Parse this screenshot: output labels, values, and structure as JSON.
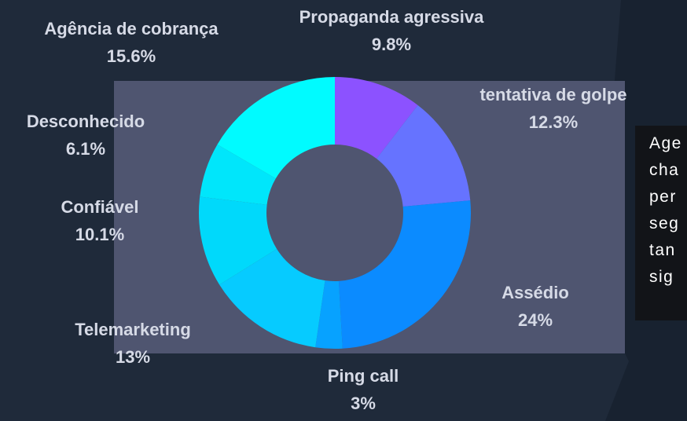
{
  "chart_data": {
    "type": "donut",
    "categories": [
      "Propaganda agressiva",
      "tentativa de golpe",
      "Assédio",
      "Ping call",
      "Telemarketing",
      "Confiável",
      "Desconhecido",
      "Agência de cobrança"
    ],
    "values": [
      9.8,
      12.3,
      24,
      3,
      13,
      10.1,
      6.1,
      15.6
    ],
    "value_labels": [
      "9.8%",
      "12.3%",
      "24%",
      "3%",
      "13%",
      "10.1%",
      "6.1%",
      "15.6%"
    ],
    "colors": [
      "#8c52ff",
      "#6673ff",
      "#0b8bff",
      "#07a2ff",
      "#06cbff",
      "#00d9fb",
      "#00e6fb",
      "#00fbff"
    ]
  },
  "side_text": [
    "Age",
    "cha",
    "per",
    "seg",
    "tan",
    "sig"
  ]
}
